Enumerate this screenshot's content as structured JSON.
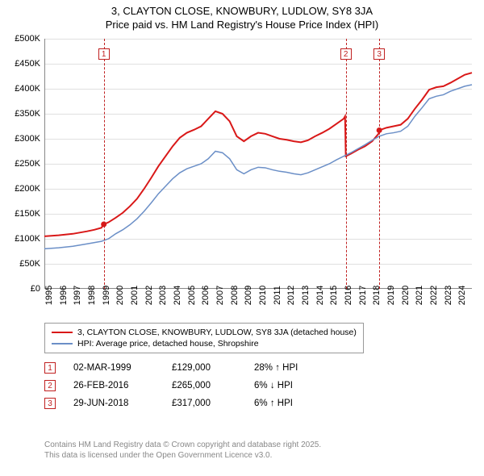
{
  "title": "3, CLAYTON CLOSE, KNOWBURY, LUDLOW, SY8 3JA",
  "subtitle": "Price paid vs. HM Land Registry's House Price Index (HPI)",
  "chart": {
    "type": "line",
    "background_color": "#ffffff",
    "grid_color": "#e0e0e0",
    "axis_color": "#888888",
    "ylim": [
      0,
      500000
    ],
    "ytick_step": 50000,
    "yticks": [
      "£0",
      "£50K",
      "£100K",
      "£150K",
      "£200K",
      "£250K",
      "£300K",
      "£350K",
      "£400K",
      "£450K",
      "£500K"
    ],
    "xlim": [
      1995,
      2025
    ],
    "xticks": [
      "1995",
      "1996",
      "1997",
      "1998",
      "1999",
      "2000",
      "2001",
      "2002",
      "2003",
      "2004",
      "2005",
      "2006",
      "2007",
      "2008",
      "2009",
      "2010",
      "2011",
      "2012",
      "2013",
      "2014",
      "2015",
      "2016",
      "2017",
      "2018",
      "2019",
      "2020",
      "2021",
      "2022",
      "2023",
      "2024"
    ],
    "vlines": [
      {
        "x": 1999.17,
        "label": "1"
      },
      {
        "x": 2016.15,
        "label": "2"
      },
      {
        "x": 2018.5,
        "label": "3"
      }
    ],
    "vline_color": "#c02020",
    "series": [
      {
        "name": "price_paid",
        "label": "3, CLAYTON CLOSE, KNOWBURY, LUDLOW, SY8 3JA (detached house)",
        "color": "#d91818",
        "line_width": 2,
        "data": [
          [
            1995,
            105000
          ],
          [
            1996,
            107000
          ],
          [
            1997,
            110000
          ],
          [
            1998,
            115000
          ],
          [
            1998.5,
            118000
          ],
          [
            1999,
            122000
          ],
          [
            1999.17,
            129000
          ],
          [
            1999.5,
            133000
          ],
          [
            2000,
            142000
          ],
          [
            2000.5,
            152000
          ],
          [
            2001,
            165000
          ],
          [
            2001.5,
            180000
          ],
          [
            2002,
            200000
          ],
          [
            2002.5,
            222000
          ],
          [
            2003,
            245000
          ],
          [
            2003.5,
            265000
          ],
          [
            2004,
            285000
          ],
          [
            2004.5,
            302000
          ],
          [
            2005,
            312000
          ],
          [
            2005.5,
            318000
          ],
          [
            2006,
            325000
          ],
          [
            2006.5,
            340000
          ],
          [
            2007,
            355000
          ],
          [
            2007.5,
            350000
          ],
          [
            2008,
            335000
          ],
          [
            2008.5,
            305000
          ],
          [
            2009,
            295000
          ],
          [
            2009.5,
            305000
          ],
          [
            2010,
            312000
          ],
          [
            2010.5,
            310000
          ],
          [
            2011,
            305000
          ],
          [
            2011.5,
            300000
          ],
          [
            2012,
            298000
          ],
          [
            2012.5,
            295000
          ],
          [
            2013,
            293000
          ],
          [
            2013.5,
            297000
          ],
          [
            2014,
            305000
          ],
          [
            2014.5,
            312000
          ],
          [
            2015,
            320000
          ],
          [
            2015.5,
            330000
          ],
          [
            2016,
            340000
          ],
          [
            2016.1,
            345000
          ],
          [
            2016.15,
            265000
          ],
          [
            2016.5,
            270000
          ],
          [
            2017,
            278000
          ],
          [
            2017.5,
            285000
          ],
          [
            2018,
            295000
          ],
          [
            2018.45,
            310000
          ],
          [
            2018.5,
            317000
          ],
          [
            2019,
            322000
          ],
          [
            2019.5,
            325000
          ],
          [
            2020,
            328000
          ],
          [
            2020.5,
            340000
          ],
          [
            2021,
            360000
          ],
          [
            2021.5,
            378000
          ],
          [
            2022,
            398000
          ],
          [
            2022.5,
            403000
          ],
          [
            2023,
            405000
          ],
          [
            2023.5,
            412000
          ],
          [
            2024,
            420000
          ],
          [
            2024.5,
            428000
          ],
          [
            2025,
            432000
          ]
        ]
      },
      {
        "name": "hpi",
        "label": "HPI: Average price, detached house, Shropshire",
        "color": "#6b8fc7",
        "line_width": 1.5,
        "data": [
          [
            1995,
            80000
          ],
          [
            1996,
            82000
          ],
          [
            1997,
            85000
          ],
          [
            1998,
            90000
          ],
          [
            1999,
            95000
          ],
          [
            1999.5,
            100000
          ],
          [
            2000,
            110000
          ],
          [
            2000.5,
            118000
          ],
          [
            2001,
            128000
          ],
          [
            2001.5,
            140000
          ],
          [
            2002,
            155000
          ],
          [
            2002.5,
            172000
          ],
          [
            2003,
            190000
          ],
          [
            2003.5,
            205000
          ],
          [
            2004,
            220000
          ],
          [
            2004.5,
            232000
          ],
          [
            2005,
            240000
          ],
          [
            2005.5,
            245000
          ],
          [
            2006,
            250000
          ],
          [
            2006.5,
            260000
          ],
          [
            2007,
            275000
          ],
          [
            2007.5,
            272000
          ],
          [
            2008,
            260000
          ],
          [
            2008.5,
            238000
          ],
          [
            2009,
            230000
          ],
          [
            2009.5,
            238000
          ],
          [
            2010,
            243000
          ],
          [
            2010.5,
            242000
          ],
          [
            2011,
            238000
          ],
          [
            2011.5,
            235000
          ],
          [
            2012,
            233000
          ],
          [
            2012.5,
            230000
          ],
          [
            2013,
            228000
          ],
          [
            2013.5,
            232000
          ],
          [
            2014,
            238000
          ],
          [
            2014.5,
            244000
          ],
          [
            2015,
            250000
          ],
          [
            2015.5,
            258000
          ],
          [
            2016,
            265000
          ],
          [
            2016.5,
            272000
          ],
          [
            2017,
            280000
          ],
          [
            2017.5,
            288000
          ],
          [
            2018,
            297000
          ],
          [
            2018.5,
            305000
          ],
          [
            2019,
            310000
          ],
          [
            2019.5,
            312000
          ],
          [
            2020,
            315000
          ],
          [
            2020.5,
            325000
          ],
          [
            2021,
            345000
          ],
          [
            2021.5,
            362000
          ],
          [
            2022,
            380000
          ],
          [
            2022.5,
            385000
          ],
          [
            2023,
            388000
          ],
          [
            2023.5,
            395000
          ],
          [
            2024,
            400000
          ],
          [
            2024.5,
            405000
          ],
          [
            2025,
            408000
          ]
        ]
      }
    ]
  },
  "legend": {
    "items": [
      {
        "color": "#d91818",
        "label": "3, CLAYTON CLOSE, KNOWBURY, LUDLOW, SY8 3JA (detached house)"
      },
      {
        "color": "#6b8fc7",
        "label": "HPI: Average price, detached house, Shropshire"
      }
    ]
  },
  "events": [
    {
      "marker": "1",
      "date": "02-MAR-1999",
      "price": "£129,000",
      "pct": "28% ↑ HPI"
    },
    {
      "marker": "2",
      "date": "26-FEB-2016",
      "price": "£265,000",
      "pct": "6% ↓ HPI"
    },
    {
      "marker": "3",
      "date": "29-JUN-2018",
      "price": "£317,000",
      "pct": "6% ↑ HPI"
    }
  ],
  "footer": {
    "line1": "Contains HM Land Registry data © Crown copyright and database right 2025.",
    "line2": "This data is licensed under the Open Government Licence v3.0."
  }
}
